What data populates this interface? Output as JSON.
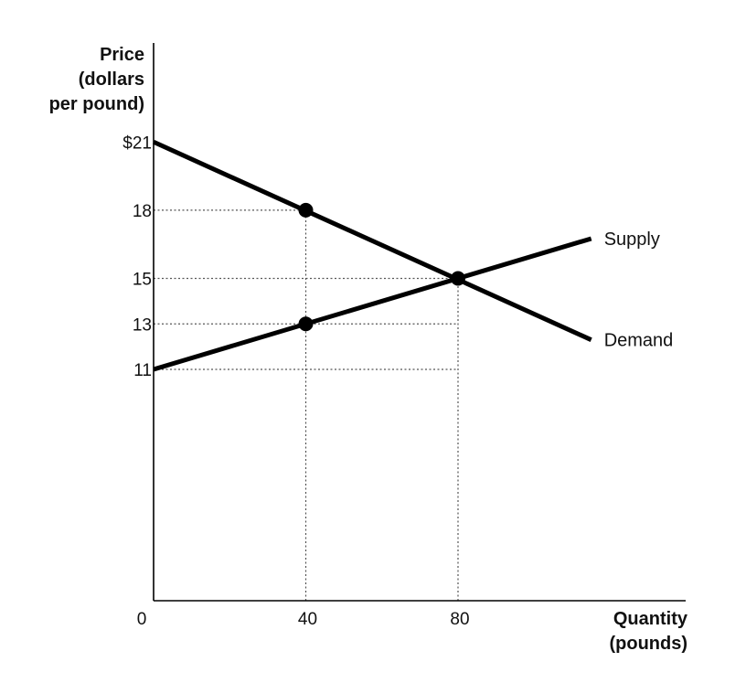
{
  "chart_data": {
    "type": "line",
    "ylabel_lines": [
      "Price",
      "(dollars",
      "per pound)"
    ],
    "xlabel_lines": [
      "Quantity",
      "(pounds)"
    ],
    "origin_label": "0",
    "y_ticks": [
      {
        "value": 21,
        "label": "$21"
      },
      {
        "value": 18,
        "label": "18"
      },
      {
        "value": 15,
        "label": "15"
      },
      {
        "value": 13,
        "label": "13"
      },
      {
        "value": 11,
        "label": "11"
      }
    ],
    "x_ticks": [
      {
        "value": 40,
        "label": "40"
      },
      {
        "value": 80,
        "label": "80"
      }
    ],
    "series": [
      {
        "name": "Demand",
        "color": "#000000",
        "points": [
          [
            0,
            21
          ],
          [
            115,
            12.3
          ]
        ]
      },
      {
        "name": "Supply",
        "color": "#000000",
        "points": [
          [
            0,
            11
          ],
          [
            115,
            16.75
          ]
        ]
      }
    ],
    "markers": [
      {
        "x": 40,
        "y": 18
      },
      {
        "x": 40,
        "y": 13
      },
      {
        "x": 80,
        "y": 15
      }
    ],
    "guides": [
      {
        "from": [
          0,
          18
        ],
        "to": [
          40,
          18
        ]
      },
      {
        "from": [
          0,
          15
        ],
        "to": [
          80,
          15
        ]
      },
      {
        "from": [
          0,
          13
        ],
        "to": [
          80,
          13
        ]
      },
      {
        "from": [
          0,
          11
        ],
        "to": [
          80,
          11
        ]
      },
      {
        "from": [
          40,
          0
        ],
        "to": [
          40,
          18
        ]
      },
      {
        "from": [
          80,
          0
        ],
        "to": [
          80,
          15
        ]
      }
    ],
    "grid": false
  }
}
